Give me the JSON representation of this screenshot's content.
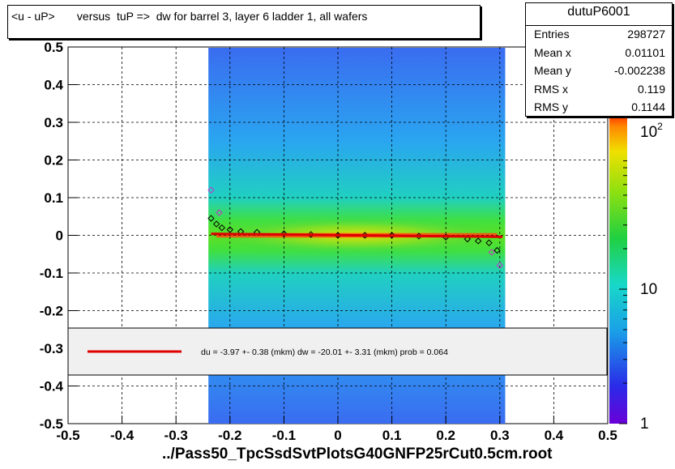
{
  "title": "<u - uP>       versus  tuP =>  dw for barrel 3, layer 6 ladder 1, all wafers",
  "stats": {
    "name": "dutuP6001",
    "rows": [
      {
        "label": "Entries",
        "value": "298727"
      },
      {
        "label": "Mean x",
        "value": "0.01101"
      },
      {
        "label": "Mean y",
        "value": "-0.002238"
      },
      {
        "label": "RMS x",
        "value": "0.119"
      },
      {
        "label": "RMS y",
        "value": "0.1144"
      }
    ]
  },
  "fit_text": "du =   -3.97 +-  0.38 (mkm) dw =  -20.01 +-  3.31 (mkm) prob = 0.064",
  "xfile": "../Pass50_TpcSsdSvtPlotsG40GNFP25rCut0.5cm.root",
  "colors": {
    "fit_line": "#e00000",
    "profile_marker": "#000000",
    "outlier_marker": "#cc33cc"
  },
  "chart_data": {
    "type": "heatmap",
    "title": "<u - uP>       versus  tuP =>  dw for barrel 3, layer 6 ladder 1, all wafers",
    "xlabel": "../Pass50_TpcSsdSvtPlotsG40GNFP25rCut0.5cm.root",
    "ylabel": "",
    "xlim": [
      -0.5,
      0.5
    ],
    "ylim": [
      -0.5,
      0.5
    ],
    "x_ticks": [
      "-0.5",
      "-0.4",
      "-0.3",
      "-0.2",
      "-0.1",
      "0",
      "0.1",
      "0.2",
      "0.3",
      "0.4",
      "0.5"
    ],
    "y_ticks": [
      "0.5",
      "0.4",
      "0.3",
      "0.2",
      "0.1",
      "0",
      "-0.1",
      "-0.2",
      "-0.3",
      "-0.4",
      "-0.5"
    ],
    "grid": true,
    "color_scale": "log",
    "colorbar_ticks": [
      "1",
      "10",
      "10^2"
    ],
    "occupied_x_range": [
      -0.24,
      0.31
    ],
    "core_band_y": [
      -0.05,
      0.05
    ],
    "profile_points": [
      {
        "x": -0.235,
        "y": 0.045
      },
      {
        "x": -0.225,
        "y": 0.03
      },
      {
        "x": -0.215,
        "y": 0.02
      },
      {
        "x": -0.2,
        "y": 0.015
      },
      {
        "x": -0.18,
        "y": 0.01
      },
      {
        "x": -0.15,
        "y": 0.008
      },
      {
        "x": -0.1,
        "y": 0.004
      },
      {
        "x": -0.05,
        "y": 0.002
      },
      {
        "x": 0.0,
        "y": 0.0
      },
      {
        "x": 0.05,
        "y": 0.0
      },
      {
        "x": 0.1,
        "y": 0.0
      },
      {
        "x": 0.15,
        "y": -0.002
      },
      {
        "x": 0.2,
        "y": -0.005
      },
      {
        "x": 0.24,
        "y": -0.01
      },
      {
        "x": 0.26,
        "y": -0.015
      },
      {
        "x": 0.28,
        "y": -0.02
      },
      {
        "x": 0.295,
        "y": -0.04
      }
    ],
    "outlier_points": [
      {
        "x": -0.235,
        "y": 0.12
      },
      {
        "x": -0.22,
        "y": 0.06
      },
      {
        "x": 0.285,
        "y": -0.045
      },
      {
        "x": 0.3,
        "y": -0.08
      }
    ],
    "fit": {
      "x": [
        -0.235,
        0.305
      ],
      "y": [
        0.004,
        -0.004
      ]
    }
  }
}
